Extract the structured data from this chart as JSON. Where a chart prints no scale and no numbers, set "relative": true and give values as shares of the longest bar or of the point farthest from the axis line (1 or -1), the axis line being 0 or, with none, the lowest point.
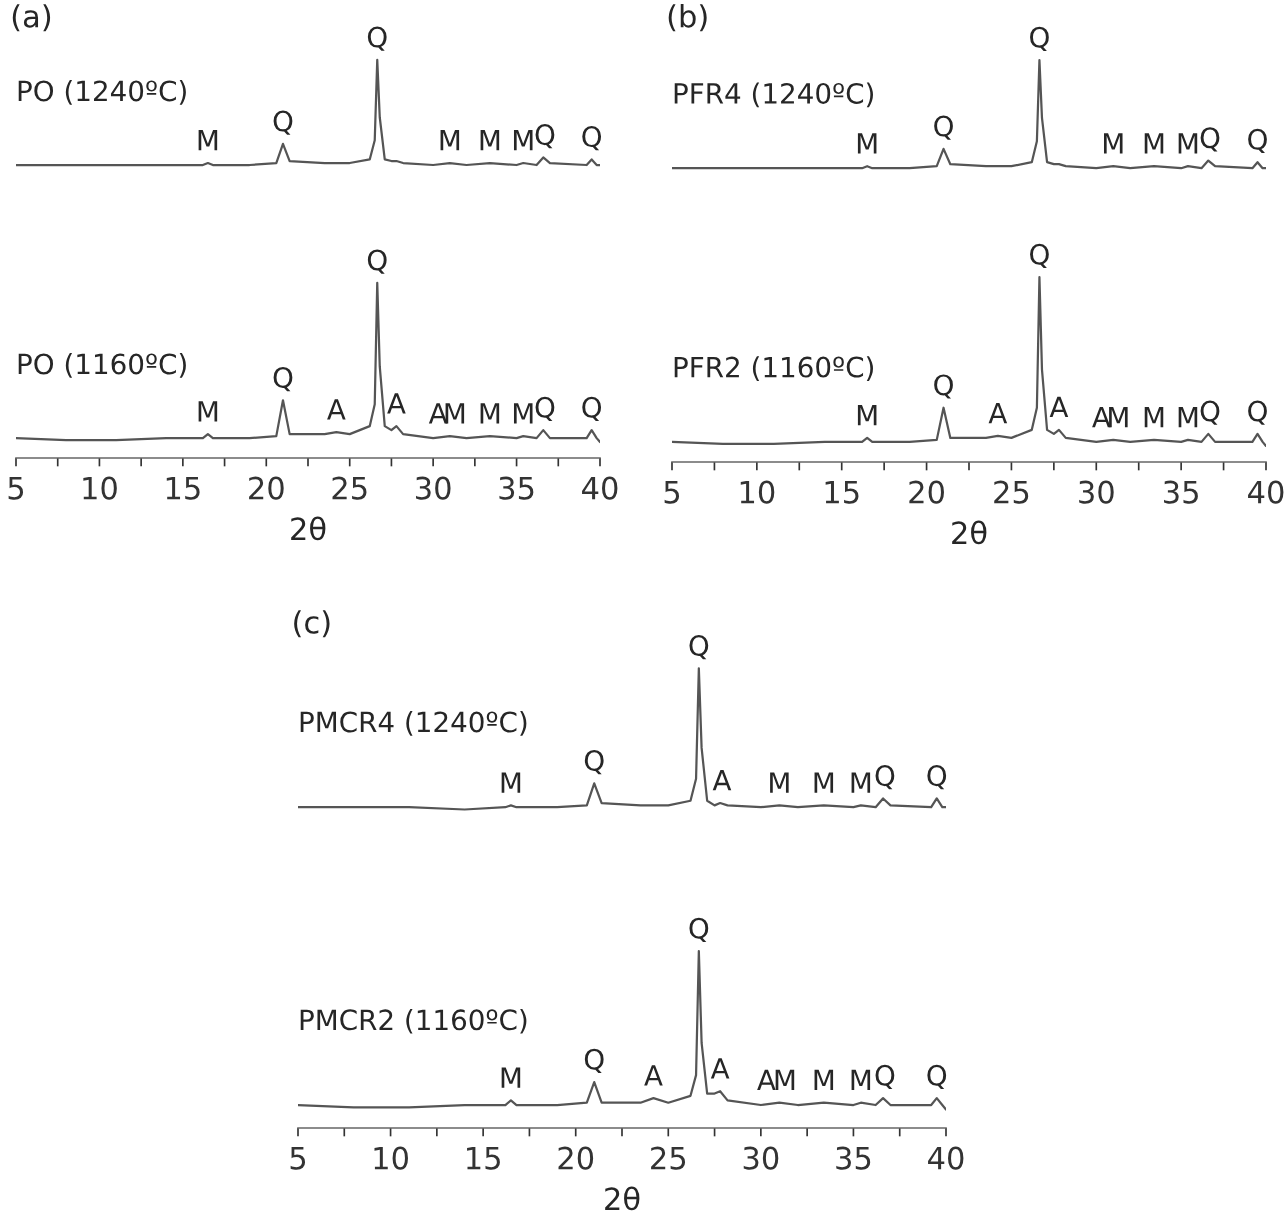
{
  "chart_data": [
    {
      "type": "line",
      "title": "(a)",
      "xlabel": "2θ",
      "relative": true,
      "grid": false,
      "legend": false,
      "xlim": [
        5,
        40
      ],
      "xticks": [
        5,
        {
          "value": 7.5,
          "label": null
        },
        10,
        {
          "value": 12.5,
          "label": null
        },
        15,
        {
          "value": 17.5,
          "label": null
        },
        20,
        {
          "value": 22.5,
          "label": null
        },
        25,
        {
          "value": 27.5,
          "label": null
        },
        30,
        {
          "value": 32.5,
          "label": null
        },
        35,
        {
          "value": 37.5,
          "label": null
        },
        40
      ],
      "x": [
        5,
        8,
        11,
        14,
        16.2,
        16.5,
        16.8,
        19,
        20.6,
        21,
        21.4,
        23.5,
        24.2,
        25,
        26.2,
        26.5,
        26.65,
        26.8,
        27.1,
        27.5,
        27.8,
        28.2,
        30,
        31,
        32,
        33.4,
        35,
        35.4,
        36.2,
        36.6,
        37,
        39.2,
        39.5,
        39.8,
        40
      ],
      "series": [
        {
          "name": "PO (1240ºC)",
          "color": "#555555",
          "values": [
            0.736,
            0.736,
            0.736,
            0.736,
            0.736,
            0.741,
            0.736,
            0.736,
            0.741,
            0.789,
            0.746,
            0.741,
            0.741,
            0.741,
            0.75,
            0.798,
            1,
            0.856,
            0.75,
            0.746,
            0.746,
            0.741,
            0.736,
            0.741,
            0.736,
            0.741,
            0.736,
            0.741,
            0.736,
            0.755,
            0.741,
            0.736,
            0.75,
            0.736,
            0.736
          ]
        },
        {
          "name": "PO (1160ºC)",
          "color": "#555555",
          "values": [
            0.05,
            0.045,
            0.045,
            0.05,
            0.05,
            0.06,
            0.05,
            0.05,
            0.055,
            0.145,
            0.06,
            0.06,
            0.065,
            0.06,
            0.08,
            0.135,
            0.44,
            0.23,
            0.08,
            0.07,
            0.08,
            0.06,
            0.05,
            0.055,
            0.05,
            0.055,
            0.05,
            0.055,
            0.05,
            0.07,
            0.05,
            0.05,
            0.07,
            0.05,
            0.04
          ]
        }
      ],
      "annotations": [
        {
          "text": "M",
          "x": 16.5,
          "y": 0.741
        },
        {
          "text": "Q",
          "x": 21,
          "y": 0.789
        },
        {
          "text": "Q",
          "x": 26.65,
          "y": 1
        },
        {
          "text": "M",
          "x": 31,
          "y": 0.741
        },
        {
          "text": "M",
          "x": 33.4,
          "y": 0.741
        },
        {
          "text": "M",
          "x": 35.4,
          "y": 0.741
        },
        {
          "text": "Q",
          "x": 36.7,
          "y": 0.755
        },
        {
          "text": "Q",
          "x": 39.5,
          "y": 0.75
        },
        {
          "text": "M",
          "x": 16.5,
          "y": 0.06
        },
        {
          "text": "Q",
          "x": 21,
          "y": 0.145
        },
        {
          "text": "A",
          "x": 24.2,
          "y": 0.065
        },
        {
          "text": "Q",
          "x": 26.65,
          "y": 0.44
        },
        {
          "text": "A",
          "x": 27.8,
          "y": 0.08
        },
        {
          "text": "A",
          "x": 30.3,
          "y": 0.055
        },
        {
          "text": "M",
          "x": 31.3,
          "y": 0.055
        },
        {
          "text": "M",
          "x": 33.4,
          "y": 0.055
        },
        {
          "text": "M",
          "x": 35.4,
          "y": 0.055
        },
        {
          "text": "Q",
          "x": 36.7,
          "y": 0.07
        },
        {
          "text": "Q",
          "x": 39.5,
          "y": 0.07
        }
      ]
    },
    {
      "type": "line",
      "title": "(b)",
      "xlabel": "2θ",
      "relative": true,
      "grid": false,
      "legend": false,
      "xlim": [
        5,
        40
      ],
      "xticks": [
        5,
        {
          "value": 7.5,
          "label": null
        },
        10,
        {
          "value": 12.5,
          "label": null
        },
        15,
        {
          "value": 17.5,
          "label": null
        },
        20,
        {
          "value": 22.5,
          "label": null
        },
        25,
        {
          "value": 27.5,
          "label": null
        },
        30,
        {
          "value": 32.5,
          "label": null
        },
        35,
        {
          "value": 37.5,
          "label": null
        },
        40
      ],
      "x": [
        5,
        8,
        11,
        14,
        16.2,
        16.5,
        16.8,
        19,
        20.6,
        21,
        21.4,
        23.5,
        24.2,
        25,
        26.2,
        26.5,
        26.65,
        26.8,
        27.1,
        27.5,
        27.8,
        28.2,
        30,
        31,
        32,
        33.4,
        35,
        35.4,
        36.2,
        36.6,
        37,
        39.2,
        39.5,
        39.8,
        40
      ],
      "series": [
        {
          "name": "PFR4 (1240ºC)",
          "color": "#555555",
          "values": [
            0.731,
            0.731,
            0.731,
            0.731,
            0.731,
            0.736,
            0.731,
            0.731,
            0.736,
            0.779,
            0.741,
            0.736,
            0.736,
            0.736,
            0.746,
            0.798,
            1,
            0.856,
            0.746,
            0.741,
            0.741,
            0.736,
            0.731,
            0.736,
            0.731,
            0.736,
            0.731,
            0.736,
            0.731,
            0.75,
            0.736,
            0.731,
            0.746,
            0.731,
            0.731
          ]
        },
        {
          "name": "PFR2 (1160ºC)",
          "color": "#555555",
          "values": [
            0.05,
            0.045,
            0.045,
            0.05,
            0.05,
            0.06,
            0.05,
            0.05,
            0.055,
            0.135,
            0.06,
            0.06,
            0.065,
            0.06,
            0.08,
            0.135,
            0.46,
            0.23,
            0.08,
            0.07,
            0.08,
            0.06,
            0.05,
            0.055,
            0.05,
            0.055,
            0.05,
            0.055,
            0.05,
            0.07,
            0.05,
            0.05,
            0.07,
            0.05,
            0.04
          ]
        }
      ],
      "annotations": [
        {
          "text": "M",
          "x": 16.5,
          "y": 0.736
        },
        {
          "text": "Q",
          "x": 21,
          "y": 0.779
        },
        {
          "text": "Q",
          "x": 26.65,
          "y": 1
        },
        {
          "text": "M",
          "x": 31,
          "y": 0.736
        },
        {
          "text": "M",
          "x": 33.4,
          "y": 0.736
        },
        {
          "text": "M",
          "x": 35.4,
          "y": 0.736
        },
        {
          "text": "Q",
          "x": 36.7,
          "y": 0.75
        },
        {
          "text": "Q",
          "x": 39.5,
          "y": 0.746
        },
        {
          "text": "M",
          "x": 16.5,
          "y": 0.06
        },
        {
          "text": "Q",
          "x": 21,
          "y": 0.135
        },
        {
          "text": "A",
          "x": 24.2,
          "y": 0.065
        },
        {
          "text": "Q",
          "x": 26.65,
          "y": 0.46
        },
        {
          "text": "A",
          "x": 27.8,
          "y": 0.08
        },
        {
          "text": "A",
          "x": 30.3,
          "y": 0.055
        },
        {
          "text": "M",
          "x": 31.3,
          "y": 0.055
        },
        {
          "text": "M",
          "x": 33.4,
          "y": 0.055
        },
        {
          "text": "M",
          "x": 35.4,
          "y": 0.055
        },
        {
          "text": "Q",
          "x": 36.7,
          "y": 0.07
        },
        {
          "text": "Q",
          "x": 39.5,
          "y": 0.07
        }
      ]
    },
    {
      "type": "line",
      "title": "(c)",
      "xlabel": "2θ",
      "relative": true,
      "grid": false,
      "legend": false,
      "xlim": [
        5,
        40
      ],
      "xticks": [
        5,
        {
          "value": 7.5,
          "label": null
        },
        10,
        {
          "value": 12.5,
          "label": null
        },
        15,
        {
          "value": 17.5,
          "label": null
        },
        20,
        {
          "value": 22.5,
          "label": null
        },
        25,
        {
          "value": 27.5,
          "label": null
        },
        30,
        {
          "value": 32.5,
          "label": null
        },
        35,
        {
          "value": 37.5,
          "label": null
        },
        40
      ],
      "x": [
        5,
        8,
        11,
        14,
        16.2,
        16.5,
        16.8,
        19,
        20.6,
        21,
        21.4,
        23.5,
        24.2,
        25,
        26.2,
        26.5,
        26.65,
        26.8,
        27.1,
        27.5,
        27.8,
        28.2,
        30,
        31,
        32,
        33.4,
        35,
        35.4,
        36.2,
        36.6,
        37,
        39.2,
        39.5,
        39.8,
        40
      ],
      "series": [
        {
          "name": "PMCR4 (1240ºC)",
          "color": "#555555",
          "values": [
            0.698,
            0.698,
            0.698,
            0.693,
            0.698,
            0.702,
            0.698,
            0.698,
            0.702,
            0.75,
            0.707,
            0.702,
            0.702,
            0.702,
            0.712,
            0.76,
            1,
            0.827,
            0.712,
            0.702,
            0.707,
            0.702,
            0.698,
            0.702,
            0.698,
            0.702,
            0.698,
            0.702,
            0.698,
            0.717,
            0.702,
            0.698,
            0.717,
            0.698,
            0.698
          ]
        },
        {
          "name": "PMCR2 (1160ºC)",
          "color": "#555555",
          "values": [
            0.05,
            0.045,
            0.045,
            0.05,
            0.05,
            0.06,
            0.05,
            0.05,
            0.055,
            0.1,
            0.055,
            0.055,
            0.065,
            0.055,
            0.07,
            0.115,
            0.385,
            0.185,
            0.075,
            0.075,
            0.08,
            0.06,
            0.05,
            0.055,
            0.05,
            0.055,
            0.05,
            0.055,
            0.05,
            0.065,
            0.05,
            0.05,
            0.065,
            0.05,
            0.04
          ]
        }
      ],
      "annotations": [
        {
          "text": "M",
          "x": 16.5,
          "y": 0.702
        },
        {
          "text": "Q",
          "x": 21,
          "y": 0.75
        },
        {
          "text": "Q",
          "x": 26.65,
          "y": 1
        },
        {
          "text": "A",
          "x": 27.9,
          "y": 0.707
        },
        {
          "text": "M",
          "x": 31,
          "y": 0.702
        },
        {
          "text": "M",
          "x": 33.4,
          "y": 0.702
        },
        {
          "text": "M",
          "x": 35.4,
          "y": 0.702
        },
        {
          "text": "Q",
          "x": 36.7,
          "y": 0.717
        },
        {
          "text": "Q",
          "x": 39.5,
          "y": 0.717
        },
        {
          "text": "M",
          "x": 16.5,
          "y": 0.06
        },
        {
          "text": "Q",
          "x": 21,
          "y": 0.1
        },
        {
          "text": "A",
          "x": 24.2,
          "y": 0.065
        },
        {
          "text": "Q",
          "x": 26.65,
          "y": 0.385
        },
        {
          "text": "A",
          "x": 27.8,
          "y": 0.08
        },
        {
          "text": "A",
          "x": 30.3,
          "y": 0.055
        },
        {
          "text": "M",
          "x": 31.3,
          "y": 0.055
        },
        {
          "text": "M",
          "x": 33.4,
          "y": 0.055
        },
        {
          "text": "M",
          "x": 35.4,
          "y": 0.055
        },
        {
          "text": "Q",
          "x": 36.7,
          "y": 0.065
        },
        {
          "text": "Q",
          "x": 39.5,
          "y": 0.065
        }
      ]
    }
  ]
}
